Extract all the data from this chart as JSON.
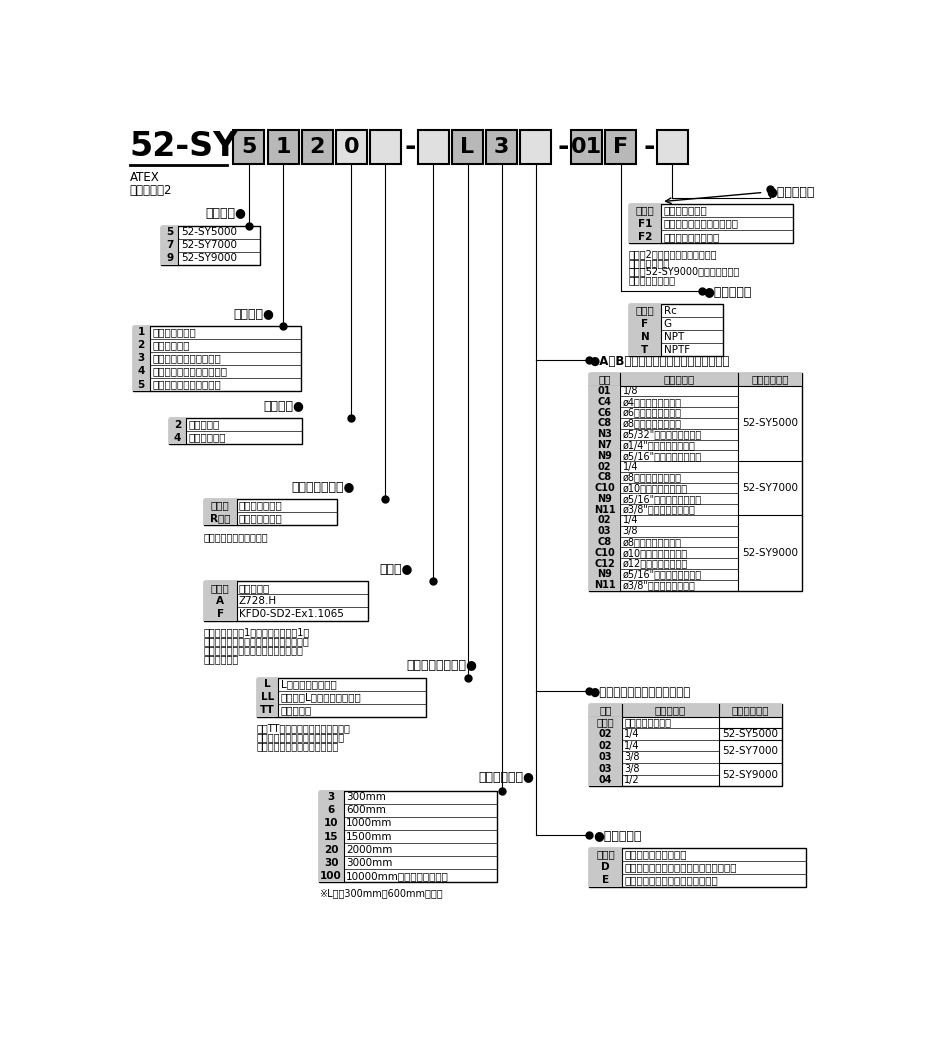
{
  "bg": "#ffffff",
  "top_title": "52-SY",
  "atex_line1": "ATEX",
  "atex_line2": "カテゴリー2",
  "box_row": [
    {
      "char": "5",
      "dark": true
    },
    {
      "char": "1",
      "dark": true
    },
    {
      "char": "2",
      "dark": true
    },
    {
      "char": "0",
      "dark": false
    },
    {
      "char": "",
      "dark": false
    },
    {
      "char": "-",
      "dash": true
    },
    {
      "char": "",
      "dark": false
    },
    {
      "char": "L",
      "dark": true
    },
    {
      "char": "3",
      "dark": true
    },
    {
      "char": "",
      "dark": false
    },
    {
      "char": "-",
      "dash": true
    },
    {
      "char": "01",
      "dark": true
    },
    {
      "char": "F",
      "dark": true
    },
    {
      "char": "-",
      "dash": true
    },
    {
      "char": "",
      "dark": false
    }
  ],
  "series_label": "シリーズ",
  "series_rows": [
    [
      "5",
      "52-SY5000"
    ],
    [
      "7",
      "52-SY7000"
    ],
    [
      "9",
      "52-SY9000"
    ]
  ],
  "switch_label": "切換方式",
  "switch_rows": [
    [
      "1",
      "２位置シングル"
    ],
    [
      "2",
      "２位置ダブル"
    ],
    [
      "3",
      "３位置クローズドセンタ"
    ],
    [
      "4",
      "３位置エキゾーストセンタ"
    ],
    [
      "5",
      "３位置プレッシャセンタ"
    ]
  ],
  "piping_label": "配管形式",
  "piping_rows": [
    [
      "2",
      "直接配管形"
    ],
    [
      "4",
      "ベース配管形"
    ]
  ],
  "pilot_label": "パイロット方式",
  "pilot_rows": [
    [
      "無記号",
      "内部パイロット"
    ],
    [
      "R注）",
      "外部パイロット"
    ]
  ],
  "pilot_note": "注）ベース配管形のみ。",
  "barrier_label": "バリア",
  "barrier_rows": [
    [
      "無記号",
      "バリアなし"
    ],
    [
      "A",
      "Z728.H"
    ],
    [
      "F",
      "KFD0-SD2-Ex1.1065"
    ]
  ],
  "barrier_note1": "注）ソレノイド1個に対してバリア1個",
  "barrier_note2": "　が必要です。なお、バリアも選択した",
  "barrier_note3": "　場合、ソレノイド数のバリアが同桔",
  "barrier_note4": "　されます。",
  "outlet_label": "口出線取出し方法",
  "outlet_rows": [
    [
      "L",
      "L形プラグコネクタ"
    ],
    [
      "LL",
      "カバー付L形プラグコネクタ"
    ],
    [
      "TT",
      "ケーブル形"
    ]
  ],
  "outlet_note1": "注）TT形は端子台に結線されてお",
  "outlet_note2": "　ります。なお、結線されたケー",
  "outlet_note3": "　ブル以外は使用できません。",
  "lead_label": "リード線長さ",
  "lead_rows": [
    [
      "3",
      "300mm"
    ],
    [
      "6",
      "600mm"
    ],
    [
      "10",
      "1000mm"
    ],
    [
      "15",
      "1500mm"
    ],
    [
      "20",
      "2000mm"
    ],
    [
      "30",
      "3000mm"
    ],
    [
      "100",
      "10000mm（準標準品対応）"
    ]
  ],
  "lead_note": "※L形は300mmと600mmのみ。",
  "bracket_label": "ブラケット",
  "bracket_rows": [
    [
      "無記号",
      "ブラケットなし"
    ],
    [
      "F1",
      "フートブラケット付注１）"
    ],
    [
      "F2",
      "サイドブラケット付"
    ]
  ],
  "bracket_notes": [
    "注１）2位置シングルソレノイド",
    "　バルブのみ。",
    "注２）52-SY9000にはブラケット",
    "　はありません。"
  ],
  "thread_label": "ねじの種類",
  "thread_rows": [
    [
      "無記号",
      "Rc"
    ],
    [
      "F",
      "G"
    ],
    [
      "N",
      "NPT"
    ],
    [
      "T",
      "NPTF"
    ]
  ],
  "port_label": "A・Bポート管接続口径（直接配管形）",
  "port_header": [
    "記号",
    "管接続口径",
    "適用シリーズ"
  ],
  "port_rows": [
    [
      "01",
      "1/8",
      ""
    ],
    [
      "C4",
      "ø4ワンタッチ管継手",
      ""
    ],
    [
      "C6",
      "ø6ワンタッチ管継手",
      ""
    ],
    [
      "C8",
      "ø8ワンタッチ管継手",
      ""
    ],
    [
      "N3",
      "ø5/32\"ワンタッチ管継手",
      ""
    ],
    [
      "N7",
      "ø1/4\"ワンタッチ管継手",
      ""
    ],
    [
      "N9",
      "ø5/16\"ワンタッチ管継手",
      "52-SY5000"
    ],
    [
      "02",
      "1/4",
      ""
    ],
    [
      "C8",
      "ø8ワンタッチ管継手",
      ""
    ],
    [
      "C10",
      "ø10ワンタッチ管継手",
      ""
    ],
    [
      "N9",
      "ø5/16\"ワンタッチ管継手",
      ""
    ],
    [
      "N11",
      "ø3/8\"ワンタッチ管継手",
      "52-SY7000"
    ],
    [
      "02",
      "1/4",
      ""
    ],
    [
      "03",
      "3/8",
      ""
    ],
    [
      "C8",
      "ø8ワンタッチ管継手",
      ""
    ],
    [
      "C10",
      "ø10ワンタッチ管継手",
      ""
    ],
    [
      "C12",
      "ø12ワンタッチ管継手",
      ""
    ],
    [
      "N9",
      "ø5/16\"ワンタッチ管継手",
      ""
    ],
    [
      "N11",
      "ø3/8\"ワンタッチ管継手",
      "52-SY9000"
    ]
  ],
  "port_series_spans": [
    [
      0,
      6,
      "52-SY5000"
    ],
    [
      7,
      11,
      "52-SY7000"
    ],
    [
      12,
      18,
      "52-SY9000"
    ]
  ],
  "base_label": "管接続口径（ベース配管形）",
  "base_header": [
    "記号",
    "管接続口径",
    "適用シリーズ"
  ],
  "base_rows": [
    [
      "無記号",
      "サブプレートなし",
      ""
    ],
    [
      "02",
      "1/4",
      "52-SY5000"
    ],
    [
      "02",
      "1/4",
      "52-SY7000"
    ],
    [
      "03",
      "3/8",
      ""
    ],
    [
      "03",
      "3/8",
      "52-SY9000"
    ],
    [
      "04",
      "1/2",
      ""
    ]
  ],
  "base_series_spans": [
    [
      0,
      0,
      ""
    ],
    [
      1,
      1,
      "52-SY5000"
    ],
    [
      2,
      3,
      "52-SY7000"
    ],
    [
      4,
      5,
      "52-SY9000"
    ]
  ],
  "manual_label": "マニュアル",
  "manual_rows": [
    [
      "無記号",
      "ノンロックプッシュ式"
    ],
    [
      "D",
      "プッシュターンロック式ドライバ操作形"
    ],
    [
      "E",
      "プッシュターンロック式手操作形"
    ]
  ]
}
